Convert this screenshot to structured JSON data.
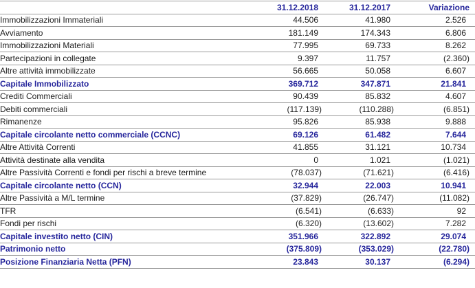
{
  "colors": {
    "accent": "#26269C",
    "border": "#999999",
    "text": "#1C1C1C",
    "background": "#FFFFFF"
  },
  "table": {
    "columns": [
      "",
      "31.12.2018",
      "31.12.2017",
      "Variazione"
    ],
    "rows": [
      {
        "label": "Immobilizzazioni Immateriali",
        "v2018": "44.506",
        "v2017": "41.980",
        "variation": "2.526",
        "total": false
      },
      {
        "label": "Avviamento",
        "v2018": "181.149",
        "v2017": "174.343",
        "variation": "6.806",
        "total": false
      },
      {
        "label": "Immobilizzazioni Materiali",
        "v2018": "77.995",
        "v2017": "69.733",
        "variation": "8.262",
        "total": false
      },
      {
        "label": "Partecipazioni in collegate",
        "v2018": "9.397",
        "v2017": "11.757",
        "variation": "(2.360)",
        "total": false
      },
      {
        "label": "Altre attività immobilizzate",
        "v2018": "56.665",
        "v2017": "50.058",
        "variation": "6.607",
        "total": false
      },
      {
        "label": "Capitale Immobilizzato",
        "v2018": "369.712",
        "v2017": "347.871",
        "variation": "21.841",
        "total": true
      },
      {
        "label": "Crediti Commerciali",
        "v2018": "90.439",
        "v2017": "85.832",
        "variation": "4.607",
        "total": false
      },
      {
        "label": "Debiti commerciali",
        "v2018": "(117.139)",
        "v2017": "(110.288)",
        "variation": "(6.851)",
        "total": false
      },
      {
        "label": "Rimanenze",
        "v2018": "95.826",
        "v2017": "85.938",
        "variation": "9.888",
        "total": false
      },
      {
        "label": "Capitale circolante netto commerciale (CCNC)",
        "v2018": "69.126",
        "v2017": "61.482",
        "variation": "7.644",
        "total": true
      },
      {
        "label": "Altre Attività Correnti",
        "v2018": "41.855",
        "v2017": "31.121",
        "variation": "10.734",
        "total": false
      },
      {
        "label": "Attività destinate alla vendita",
        "v2018": "0",
        "v2017": "1.021",
        "variation": "(1.021)",
        "total": false
      },
      {
        "label": "Altre Passività Correnti e fondi per rischi a breve termine",
        "v2018": "(78.037)",
        "v2017": "(71.621)",
        "variation": "(6.416)",
        "total": false
      },
      {
        "label": "Capitale circolante netto (CCN)",
        "v2018": "32.944",
        "v2017": "22.003",
        "variation": "10.941",
        "total": true
      },
      {
        "label": "Altre Passività a M/L termine",
        "v2018": "(37.829)",
        "v2017": "(26.747)",
        "variation": "(11.082)",
        "total": false
      },
      {
        "label": "TFR",
        "v2018": "(6.541)",
        "v2017": "(6.633)",
        "variation": "92",
        "total": false
      },
      {
        "label": "Fondi per rischi",
        "v2018": "(6.320)",
        "v2017": "(13.602)",
        "variation": "7.282",
        "total": false
      },
      {
        "label": "Capitale investito netto (CIN)",
        "v2018": "351.966",
        "v2017": "322.892",
        "variation": "29.074",
        "total": true
      },
      {
        "label": "Patrimonio netto",
        "v2018": "(375.809)",
        "v2017": "(353.029)",
        "variation": "(22.780)",
        "total": true
      },
      {
        "label": "Posizione Finanziaria Netta (PFN)",
        "v2018": "23.843",
        "v2017": "30.137",
        "variation": "(6.294)",
        "total": true
      }
    ]
  }
}
